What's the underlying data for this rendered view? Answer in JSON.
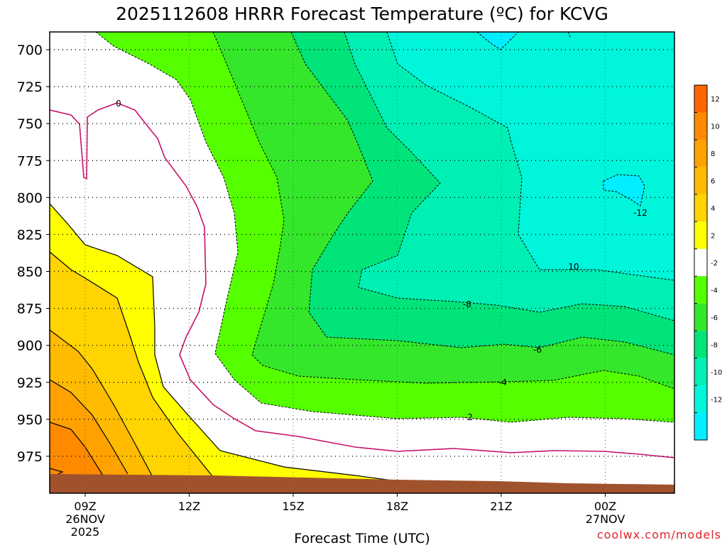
{
  "chart_data": {
    "type": "heatmap",
    "title": "2025112608 HRRR Forecast Temperature (ºC) for KCVG",
    "xlabel": "Forecast Time (UTC)",
    "ylabel": "",
    "y_axis": {
      "ticks": [
        "700",
        "725",
        "750",
        "775",
        "800",
        "825",
        "850",
        "875",
        "900",
        "925",
        "950",
        "975"
      ],
      "ylim": [
        1000,
        688
      ],
      "inverted": true
    },
    "x_axis": {
      "ticks": [
        {
          "label": "09Z",
          "date": "26NOV",
          "year": "2025"
        },
        {
          "label": "12Z"
        },
        {
          "label": "15Z"
        },
        {
          "label": "18Z"
        },
        {
          "label": "21Z"
        },
        {
          "label": "00Z",
          "date": "27NOV"
        }
      ]
    },
    "grid": true,
    "contour_labels": [
      "0",
      "-2",
      "-4",
      "-6",
      "-8",
      "10",
      "-12"
    ],
    "colorbar": {
      "placement": "right",
      "labels": [
        "12",
        "10",
        "8",
        "6",
        "4",
        "2",
        "-2",
        "-4",
        "-6",
        "-8",
        "-10",
        "-12"
      ],
      "colors": [
        "#ff6600",
        "#ff8a00",
        "#ffa200",
        "#ffbb00",
        "#ffd400",
        "#ffff00",
        "#ffffff",
        "#55ff00",
        "#34e72a",
        "#00e47a",
        "#00f0b4",
        "#00f5da",
        "#00eeff"
      ]
    },
    "credit": "coolwx.com/models"
  }
}
